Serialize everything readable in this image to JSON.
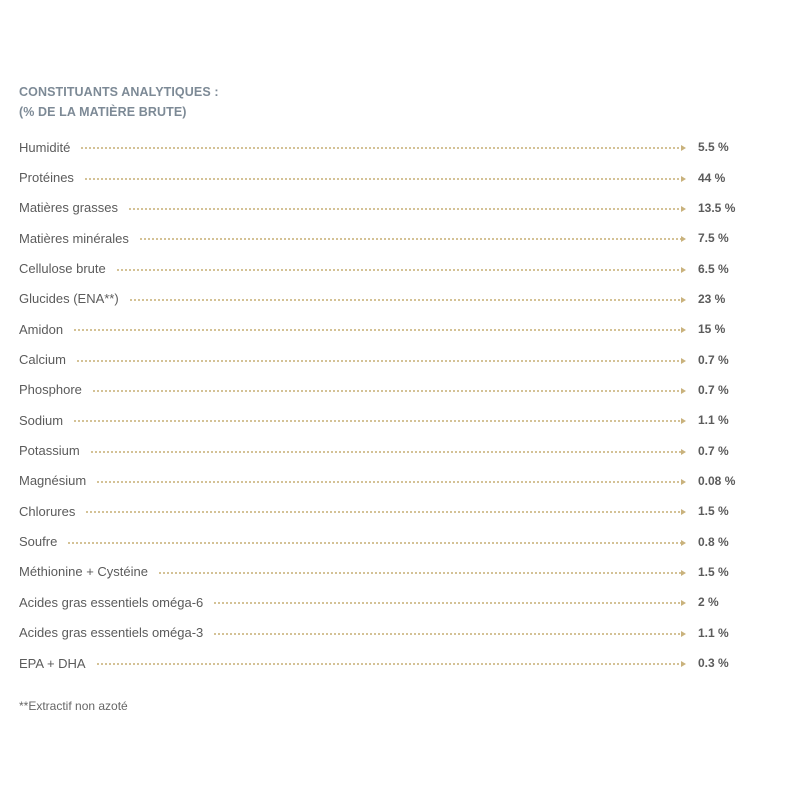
{
  "header": {
    "line1": "CONSTITUANTS ANALYTIQUES :",
    "line2": "(% DE LA MATIÈRE BRUTE)"
  },
  "colors": {
    "header": "#7d8a96",
    "leader": "#c9b27c",
    "text": "#5b5b5b"
  },
  "rows": [
    {
      "label": "Humidité",
      "value": "5.5 %"
    },
    {
      "label": "Protéines",
      "value": "44 %"
    },
    {
      "label": "Matières grasses",
      "value": "13.5 %"
    },
    {
      "label": "Matières minérales",
      "value": "7.5 %"
    },
    {
      "label": "Cellulose brute",
      "value": "6.5 %"
    },
    {
      "label": "Glucides (ENA**)",
      "value": "23 %"
    },
    {
      "label": "Amidon",
      "value": "15 %"
    },
    {
      "label": "Calcium",
      "value": "0.7 %"
    },
    {
      "label": "Phosphore",
      "value": "0.7 %"
    },
    {
      "label": "Sodium",
      "value": "1.1 %"
    },
    {
      "label": "Potassium",
      "value": "0.7 %"
    },
    {
      "label": "Magnésium",
      "value": "0.08 %"
    },
    {
      "label": "Chlorures",
      "value": "1.5 %"
    },
    {
      "label": "Soufre",
      "value": "0.8 %"
    },
    {
      "label": "Méthionine + Cystéine",
      "value": "1.5 %"
    },
    {
      "label": "Acides gras essentiels oméga-6",
      "value": "2 %"
    },
    {
      "label": "Acides gras essentiels oméga-3",
      "value": "1.1 %"
    },
    {
      "label": "EPA + DHA",
      "value": "0.3 %"
    }
  ],
  "footnote": "**Extractif non azoté"
}
